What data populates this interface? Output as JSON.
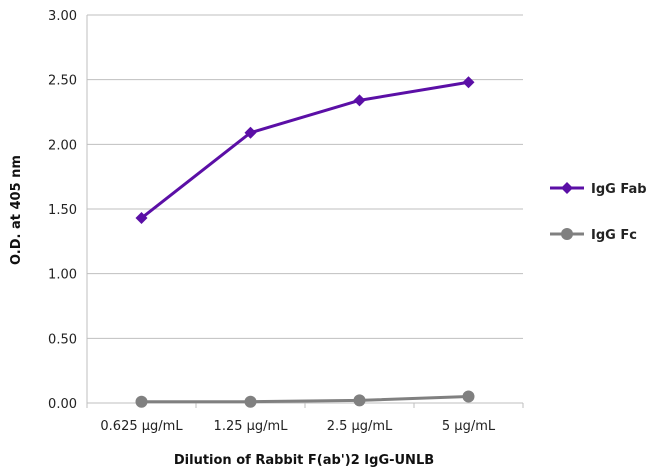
{
  "chart_data": {
    "type": "line",
    "title": "",
    "xlabel": "Dilution of Rabbit F(ab')2 IgG-UNLB",
    "ylabel": "O.D. at 405 nm",
    "categories": [
      "0.625 μg/mL",
      "1.25 μg/mL",
      "2.5 μg/mL",
      "5 μg/mL"
    ],
    "ylim": [
      0,
      3
    ],
    "yticks": [
      "0.00",
      "0.50",
      "1.00",
      "1.50",
      "2.00",
      "2.50",
      "3.00"
    ],
    "grid": true,
    "legend_position": "right",
    "series": [
      {
        "name": "IgG Fab",
        "values": [
          1.43,
          2.09,
          2.34,
          2.48
        ],
        "color": "#5b0fa6",
        "marker": "diamond"
      },
      {
        "name": "IgG Fc",
        "values": [
          0.01,
          0.01,
          0.02,
          0.05
        ],
        "color": "#808080",
        "marker": "circle"
      }
    ]
  }
}
